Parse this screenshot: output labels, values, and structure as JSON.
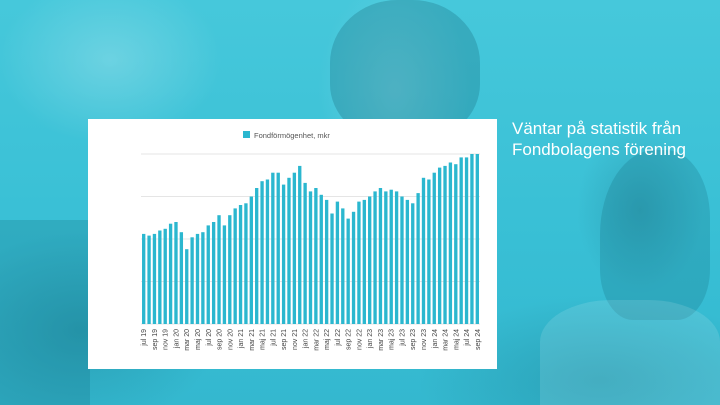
{
  "headline": "Väntar på statistik från Fondbolagens förening",
  "colors": {
    "accent": "#2bb7cf",
    "background": "#3cc3d8"
  },
  "chart_data": {
    "type": "bar",
    "title": "",
    "xlabel": "",
    "ylabel": "",
    "legend": {
      "position": "top-center",
      "entries": [
        "Fondförmögenhet, mkr"
      ]
    },
    "grid": true,
    "y_axis_labels": false,
    "ylim": [
      0,
      100
    ],
    "tick_labels": [
      "jul 19",
      "sep 19",
      "nov 19",
      "jan 20",
      "mar 20",
      "maj 20",
      "jul 20",
      "sep 20",
      "nov 20",
      "jan 21",
      "mar 21",
      "maj 21",
      "jul 21",
      "sep 21",
      "nov 21",
      "jan 22",
      "mar 22",
      "maj 22",
      "jul 22",
      "sep 22",
      "nov 22",
      "jan 23",
      "mar 23",
      "maj 23",
      "jul 23",
      "sep 23",
      "nov 23",
      "jan 24",
      "mar 24",
      "maj 24",
      "jul 24",
      "sep 24"
    ],
    "categories": [
      "jul 19",
      "aug 19",
      "sep 19",
      "okt 19",
      "nov 19",
      "dec 19",
      "jan 20",
      "feb 20",
      "mar 20",
      "apr 20",
      "maj 20",
      "jun 20",
      "jul 20",
      "aug 20",
      "sep 20",
      "okt 20",
      "nov 20",
      "dec 20",
      "jan 21",
      "feb 21",
      "mar 21",
      "apr 21",
      "maj 21",
      "jun 21",
      "jul 21",
      "aug 21",
      "sep 21",
      "okt 21",
      "nov 21",
      "dec 21",
      "jan 22",
      "feb 22",
      "mar 22",
      "apr 22",
      "maj 22",
      "jun 22",
      "jul 22",
      "aug 22",
      "sep 22",
      "okt 22",
      "nov 22",
      "dec 22",
      "jan 23",
      "feb 23",
      "mar 23",
      "apr 23",
      "maj 23",
      "jun 23",
      "jul 23",
      "aug 23",
      "sep 23",
      "okt 23",
      "nov 23",
      "dec 23",
      "jan 24",
      "feb 24",
      "mar 24",
      "apr 24",
      "maj 24",
      "jun 24",
      "jul 24",
      "aug 24",
      "sep 24"
    ],
    "series": [
      {
        "name": "Fondförmögenhet, mkr",
        "values": [
          53,
          52,
          53,
          55,
          56,
          59,
          60,
          54,
          44,
          51,
          53,
          54,
          58,
          60,
          64,
          58,
          64,
          68,
          70,
          71,
          75,
          80,
          84,
          85,
          89,
          89,
          82,
          86,
          89,
          93,
          83,
          78,
          80,
          76,
          73,
          65,
          72,
          68,
          62,
          66,
          72,
          73,
          75,
          78,
          80,
          78,
          79,
          78,
          75,
          73,
          71,
          77,
          86,
          85,
          89,
          92,
          93,
          95,
          94,
          98,
          98,
          100,
          100
        ]
      }
    ]
  }
}
